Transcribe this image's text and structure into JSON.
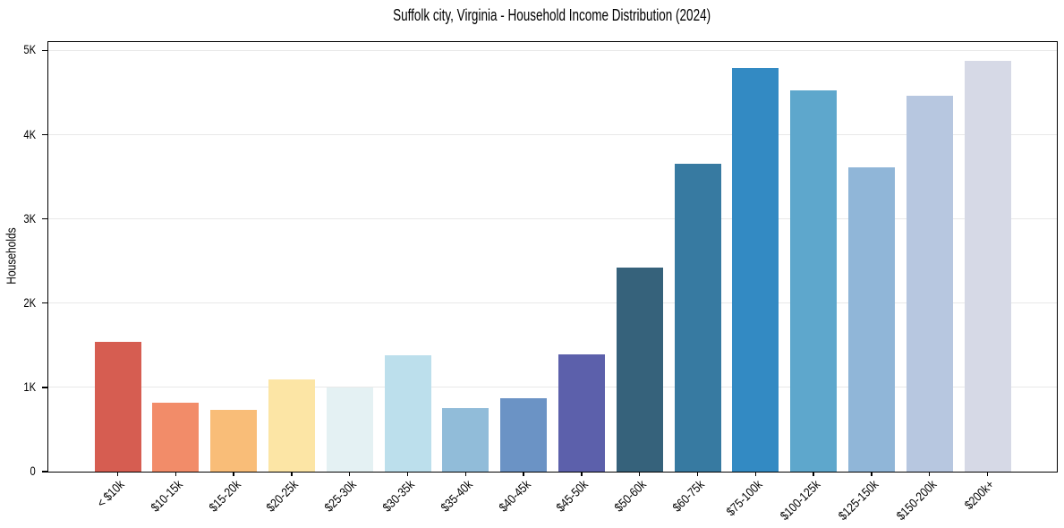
{
  "chart_data": {
    "type": "bar",
    "title": "Suffolk city, Virginia - Household Income Distribution (2024)",
    "xlabel": "",
    "ylabel": "Households",
    "categories": [
      "< $10k",
      "$10-15k",
      "$15-20k",
      "$20-25k",
      "$25-30k",
      "$30-35k",
      "$35-40k",
      "$40-45k",
      "$45-50k",
      "$50-60k",
      "$60-75k",
      "$75-100k",
      "$100-125k",
      "$125-150k",
      "$150-200k",
      "$200k+"
    ],
    "values": [
      1545,
      820,
      735,
      1090,
      1000,
      1385,
      750,
      870,
      1395,
      2420,
      3650,
      4790,
      4530,
      3610,
      4460,
      4880
    ],
    "bar_colors": [
      "#d65d51",
      "#f28c69",
      "#f9bd78",
      "#fce5a5",
      "#e4f1f3",
      "#bcdfec",
      "#91bcd9",
      "#6b93c5",
      "#5c60ab",
      "#36627b",
      "#377aa1",
      "#338ac3",
      "#5ea7cc",
      "#90b6d8",
      "#b7c7e0",
      "#d6d9e6"
    ],
    "ytick_labels": [
      "0",
      "1K",
      "2K",
      "3K",
      "4K",
      "5K"
    ],
    "ytick_values": [
      0,
      1000,
      2000,
      3000,
      4000,
      5000
    ],
    "ylim": [
      0,
      5100
    ],
    "grid": "horizontal",
    "legend": "none",
    "background_color": "#ffffff",
    "grid_color": "#e8e8e8",
    "spine_color": "#000000"
  }
}
